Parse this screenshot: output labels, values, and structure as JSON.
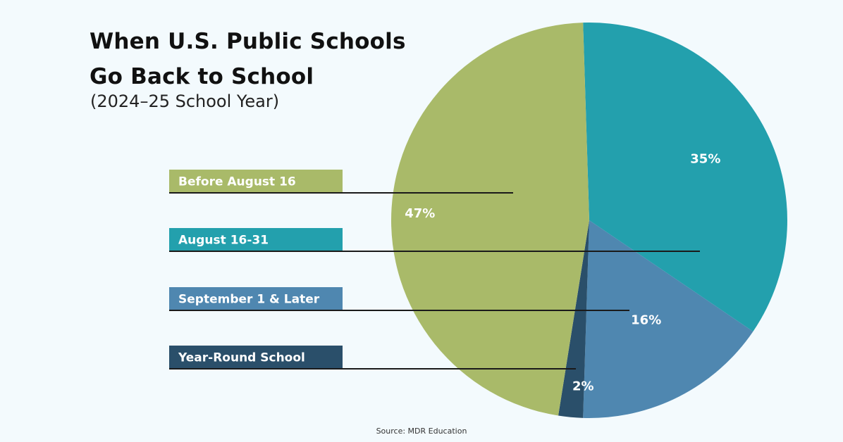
{
  "chart_data": {
    "type": "pie",
    "title": [
      "When U.S. Public Schools",
      "Go Back to School"
    ],
    "subtitle": "(2024–25 School Year)",
    "categories": [
      "Before August 16",
      "August 16-31",
      "September 1 & Later",
      "Year-Round School"
    ],
    "values": [
      47,
      35,
      16,
      2
    ],
    "value_labels": [
      "47%",
      "35%",
      "16%",
      "2%"
    ],
    "colors": [
      "#a9ba69",
      "#23a0ad",
      "#4f87b0",
      "#2a4f6a"
    ],
    "legend_placement": "left",
    "source": "Source: MDR Education"
  }
}
